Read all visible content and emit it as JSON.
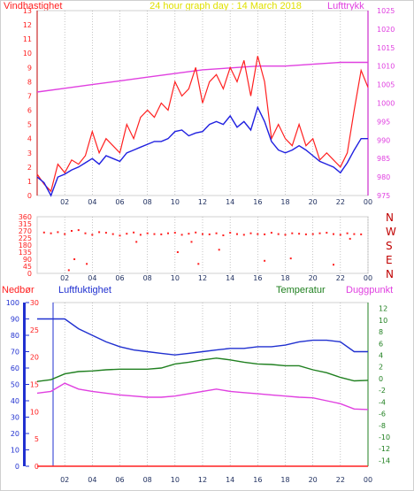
{
  "header": {
    "left_label": "Vindhastighet",
    "title": "24 hour graph day : 14 March 2018",
    "right_label": "Lufttrykk"
  },
  "lower_header": {
    "precip_label": "Nedbør",
    "humidity_label": "Luftfuktighet",
    "temp_label": "Temperatur",
    "dew_label": "Duggpunkt"
  },
  "colors": {
    "wind": "#ff2020",
    "wind_avg": "#2020e0",
    "pressure": "#e040e0",
    "title": "#e0e000",
    "humidity": "#2030d0",
    "temperature": "#208020",
    "dewpoint": "#e040e0",
    "precip": "#ff2020",
    "grid": "#a0a0a0"
  },
  "chart_data": [
    {
      "type": "line",
      "x_ticks": [
        "02",
        "04",
        "06",
        "08",
        "10",
        "12",
        "14",
        "16",
        "18",
        "20",
        "22",
        "00"
      ],
      "ylim_left": [
        0,
        13
      ],
      "y_ticks_left": [
        0,
        1,
        2,
        3,
        4,
        5,
        6,
        7,
        8,
        9,
        10,
        11,
        12,
        13
      ],
      "ylim_right": [
        975,
        1025
      ],
      "y_ticks_right": [
        975,
        980,
        985,
        990,
        995,
        1000,
        1005,
        1010,
        1015,
        1020,
        1025
      ],
      "series": [
        {
          "name": "Vindhastighet",
          "axis": "left",
          "x": [
            0,
            0.5,
            1,
            1.5,
            2,
            2.5,
            3,
            3.5,
            4,
            4.5,
            5,
            5.5,
            6,
            6.5,
            7,
            7.5,
            8,
            8.5,
            9,
            9.5,
            10,
            10.5,
            11,
            11.5,
            12,
            12.5,
            13,
            13.5,
            14,
            14.5,
            15,
            15.5,
            16,
            16.5,
            17,
            17.5,
            18,
            18.5,
            19,
            19.5,
            20,
            20.5,
            21,
            21.5,
            22,
            22.5,
            23,
            23.5,
            24
          ],
          "values": [
            1.5,
            0.8,
            0.3,
            2.2,
            1.6,
            2.5,
            2.2,
            2.8,
            4.5,
            3,
            4,
            3.5,
            3,
            5,
            4,
            5.5,
            6,
            5.5,
            6.5,
            6,
            8,
            7,
            7.5,
            9,
            6.5,
            8,
            8.5,
            7.5,
            9,
            8,
            9.5,
            7,
            9.8,
            8,
            4,
            5,
            4,
            3.5,
            5,
            3.5,
            4,
            2.5,
            3,
            2.5,
            2,
            3,
            6,
            8.8,
            7.6
          ]
        },
        {
          "name": "",
          "axis": "left",
          "x": [
            0,
            0.5,
            1,
            1.5,
            2,
            2.5,
            3,
            3.5,
            4,
            4.5,
            5,
            5.5,
            6,
            6.5,
            7,
            7.5,
            8,
            8.5,
            9,
            9.5,
            10,
            10.5,
            11,
            11.5,
            12,
            12.5,
            13,
            13.5,
            14,
            14.5,
            15,
            15.5,
            16,
            16.5,
            17,
            17.5,
            18,
            18.5,
            19,
            19.5,
            20,
            20.5,
            21,
            21.5,
            22,
            22.5,
            23,
            23.5,
            24
          ],
          "values": [
            1.3,
            0.9,
            0,
            1.3,
            1.5,
            1.8,
            2,
            2.3,
            2.6,
            2.2,
            2.8,
            2.6,
            2.4,
            3,
            3.2,
            3.4,
            3.6,
            3.8,
            3.8,
            4,
            4.5,
            4.6,
            4.2,
            4.4,
            4.5,
            5,
            5.2,
            5,
            5.6,
            4.8,
            5.2,
            4.6,
            6.2,
            5.2,
            3.8,
            3.2,
            3,
            3.2,
            3.5,
            3.2,
            2.8,
            2.4,
            2.2,
            2,
            1.6,
            2.3,
            3.2,
            4,
            4
          ]
        },
        {
          "name": "Lufttrykk",
          "axis": "right",
          "x": [
            0,
            2,
            4,
            6,
            8,
            10,
            12,
            14,
            16,
            18,
            20,
            22,
            24
          ],
          "values": [
            1003,
            1004,
            1005,
            1006,
            1007,
            1008,
            1009,
            1009.5,
            1010,
            1010,
            1010.5,
            1011,
            1011
          ]
        }
      ]
    },
    {
      "type": "scatter",
      "x_ticks": [
        "02",
        "04",
        "06",
        "08",
        "10",
        "12",
        "14",
        "16",
        "18",
        "20",
        "22",
        "00"
      ],
      "ylim": [
        0,
        360
      ],
      "y_ticks": [
        0,
        45,
        90,
        135,
        180,
        225,
        270,
        315,
        360
      ],
      "y_ticks_right_labels": [
        "N",
        "W",
        "S",
        "E",
        "N"
      ],
      "series": [
        {
          "name": "",
          "x": [
            0.5,
            1,
            1.5,
            2,
            2.5,
            3,
            3.5,
            4,
            4.5,
            5,
            5.5,
            6,
            6.5,
            7,
            7.5,
            8,
            8.5,
            9,
            9.5,
            10,
            10.5,
            11,
            11.5,
            12,
            12.5,
            13,
            13.5,
            14,
            14.5,
            15,
            15.5,
            16,
            16.5,
            17,
            17.5,
            18,
            18.5,
            19,
            19.5,
            20,
            20.5,
            21,
            21.5,
            22,
            22.5,
            23,
            23.5
          ],
          "values": [
            260,
            255,
            262,
            250,
            270,
            275,
            255,
            245,
            262,
            258,
            250,
            240,
            252,
            260,
            245,
            255,
            250,
            248,
            255,
            258,
            245,
            252,
            260,
            250,
            248,
            255,
            242,
            258,
            250,
            245,
            255,
            250,
            248,
            258,
            250,
            245,
            255,
            252,
            248,
            250,
            255,
            258,
            250,
            245,
            255,
            250,
            248
          ]
        },
        {
          "name": "",
          "x": [
            2.3,
            2.7,
            3.6,
            7.2,
            10.2,
            11.2,
            11.7,
            13.2,
            16.5,
            18.4,
            21.5,
            22.7
          ],
          "values": [
            20,
            90,
            60,
            200,
            135,
            200,
            60,
            150,
            80,
            95,
            55,
            220
          ]
        }
      ]
    },
    {
      "type": "line",
      "x_ticks": [
        "02",
        "04",
        "06",
        "08",
        "10",
        "12",
        "14",
        "16",
        "18",
        "20",
        "22",
        "00"
      ],
      "ylim_precip": [
        0,
        30
      ],
      "y_ticks_precip": [
        0,
        5,
        10,
        15,
        20,
        25,
        30
      ],
      "ylim_humidity": [
        0,
        100
      ],
      "y_ticks_humidity": [
        0,
        10,
        20,
        30,
        40,
        50,
        60,
        70,
        80,
        90,
        100
      ],
      "ylim_temp": [
        -15,
        13
      ],
      "y_ticks_temp": [
        -14,
        -12,
        -10,
        -8,
        -6,
        -4,
        -2,
        0,
        2,
        4,
        6,
        8,
        10,
        12
      ],
      "series": [
        {
          "name": "Luftfuktighet",
          "axis": "humidity",
          "x": [
            0,
            1,
            2,
            3,
            4,
            5,
            6,
            7,
            8,
            9,
            10,
            11,
            12,
            13,
            14,
            15,
            16,
            17,
            18,
            19,
            20,
            21,
            22,
            23,
            24
          ],
          "values": [
            90,
            90,
            90,
            84,
            80,
            76,
            73,
            71,
            70,
            69,
            68,
            69,
            70,
            71,
            72,
            72,
            73,
            73,
            74,
            76,
            77,
            77,
            76,
            70,
            70
          ]
        },
        {
          "name": "Temperatur",
          "axis": "temp",
          "x": [
            0,
            1,
            2,
            3,
            4,
            5,
            6,
            7,
            8,
            9,
            10,
            11,
            12,
            13,
            14,
            15,
            16,
            17,
            18,
            19,
            20,
            21,
            22,
            23,
            24
          ],
          "values": [
            -0.5,
            -0.2,
            0.8,
            1.2,
            1.3,
            1.5,
            1.6,
            1.6,
            1.6,
            1.8,
            2.5,
            2.8,
            3.2,
            3.5,
            3.2,
            2.8,
            2.5,
            2.4,
            2.2,
            2.2,
            1.5,
            1.0,
            0.2,
            -0.4,
            -0.3
          ]
        },
        {
          "name": "Duggpunkt",
          "axis": "temp",
          "x": [
            0,
            1,
            2,
            3,
            4,
            5,
            6,
            7,
            8,
            9,
            10,
            11,
            12,
            13,
            14,
            15,
            16,
            17,
            18,
            19,
            20,
            21,
            22,
            23,
            24
          ],
          "values": [
            -2.5,
            -2.2,
            -0.8,
            -1.8,
            -2.2,
            -2.5,
            -2.8,
            -3.0,
            -3.2,
            -3.2,
            -3.0,
            -2.6,
            -2.2,
            -1.8,
            -2.2,
            -2.4,
            -2.6,
            -2.8,
            -3.0,
            -3.2,
            -3.3,
            -3.8,
            -4.3,
            -5.2,
            -5.3
          ]
        },
        {
          "name": "Nedbør",
          "axis": "precip",
          "x": [
            0,
            24
          ],
          "values": [
            0,
            0
          ]
        }
      ]
    }
  ]
}
